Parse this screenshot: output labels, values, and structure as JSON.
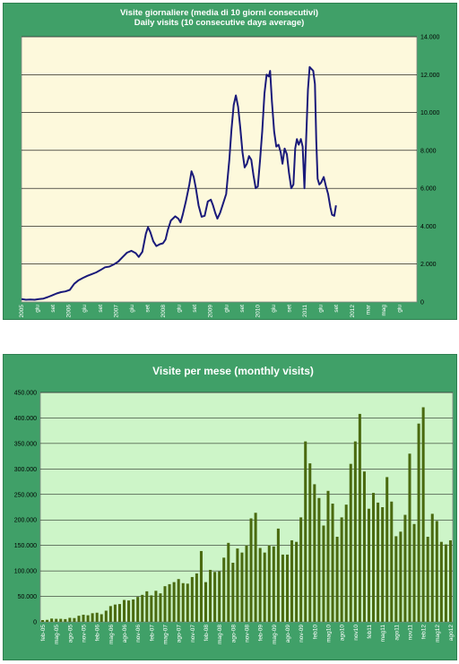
{
  "charts": [
    {
      "title_lines": [
        "Visite giornaliere (media di 10 giorni consecutivi)",
        "Daily visits (10 consecutive days average)"
      ],
      "y_tick_labels": [
        "0",
        "2.000",
        "4.000",
        "6.000",
        "8.000",
        "10.000",
        "12.000",
        "14.000"
      ],
      "x_tick_labels": [
        "2005",
        "giu",
        "set",
        "2006",
        "giu",
        "set",
        "2007",
        "giu",
        "set",
        "2008",
        "giu",
        "set",
        "2009",
        "giu",
        "set",
        "2010",
        "giu",
        "set",
        "2011",
        "giu",
        "set",
        "2012",
        "mar",
        "mag",
        "giu"
      ],
      "colors": {
        "line": "#1a1a7a",
        "plot_bg": "#fdf9dc",
        "panel_bg": "#40a068"
      }
    },
    {
      "title": "Visite per mese (monthly visits)",
      "y_tick_labels": [
        "0",
        "50.000",
        "100.000",
        "150.000",
        "200.000",
        "250.000",
        "300.000",
        "350.000",
        "400.000",
        "450.000"
      ],
      "x_tick_labels": [
        "feb-05",
        "mag-05",
        "ago-05",
        "nov-05",
        "feb-06",
        "mag-06",
        "ago-06",
        "nov-06",
        "feb-07",
        "mag-07",
        "ago-07",
        "nov-07",
        "feb-08",
        "mag-08",
        "ago-08",
        "nov-08",
        "feb-09",
        "mag-09",
        "ago-09",
        "nov-09",
        "feb10",
        "mag10",
        "ago10",
        "nov10",
        "feb11",
        "mag11",
        "ago11",
        "nov11",
        "feb12",
        "mag12",
        "ago12"
      ],
      "colors": {
        "bar": "#4a6a10",
        "plot_bg": "#cdf5c8",
        "panel_bg": "#40a068"
      }
    }
  ],
  "chart_data": [
    {
      "type": "line",
      "ylim": [
        0,
        14000
      ],
      "x_months_start": "2005-01",
      "x_months_span": 90,
      "grid": true,
      "points": [
        [
          0,
          150
        ],
        [
          1,
          120
        ],
        [
          2,
          130
        ],
        [
          3,
          120
        ],
        [
          4,
          150
        ],
        [
          5,
          180
        ],
        [
          6,
          260
        ],
        [
          7,
          350
        ],
        [
          8,
          450
        ],
        [
          9,
          520
        ],
        [
          10,
          560
        ],
        [
          11,
          640
        ],
        [
          12,
          960
        ],
        [
          13,
          1150
        ],
        [
          14,
          1270
        ],
        [
          15,
          1380
        ],
        [
          16,
          1470
        ],
        [
          17,
          1560
        ],
        [
          18,
          1690
        ],
        [
          19,
          1830
        ],
        [
          20,
          1870
        ],
        [
          21,
          1980
        ],
        [
          22,
          2130
        ],
        [
          23,
          2370
        ],
        [
          24,
          2600
        ],
        [
          25,
          2700
        ],
        [
          26,
          2580
        ],
        [
          26.7,
          2380
        ],
        [
          27.5,
          2650
        ],
        [
          28.3,
          3600
        ],
        [
          28.8,
          3950
        ],
        [
          29.3,
          3700
        ],
        [
          30,
          3200
        ],
        [
          30.7,
          2950
        ],
        [
          31.5,
          3050
        ],
        [
          32.2,
          3100
        ],
        [
          32.8,
          3300
        ],
        [
          33.3,
          3800
        ],
        [
          34,
          4300
        ],
        [
          35,
          4520
        ],
        [
          35.7,
          4400
        ],
        [
          36.2,
          4200
        ],
        [
          36.7,
          4600
        ],
        [
          37.4,
          5300
        ],
        [
          38.2,
          6200
        ],
        [
          38.7,
          6900
        ],
        [
          39.2,
          6600
        ],
        [
          39.7,
          6000
        ],
        [
          40.3,
          5100
        ],
        [
          41,
          4500
        ],
        [
          41.7,
          4550
        ],
        [
          42.4,
          5300
        ],
        [
          43.1,
          5400
        ],
        [
          43.6,
          5100
        ],
        [
          44.1,
          4700
        ],
        [
          44.6,
          4400
        ],
        [
          45.2,
          4700
        ],
        [
          45.9,
          5200
        ],
        [
          46.6,
          5700
        ],
        [
          47.3,
          7500
        ],
        [
          47.8,
          9100
        ],
        [
          48.3,
          10400
        ],
        [
          48.8,
          10900
        ],
        [
          49.3,
          10300
        ],
        [
          49.8,
          9200
        ],
        [
          50.3,
          7900
        ],
        [
          50.8,
          7100
        ],
        [
          51.3,
          7300
        ],
        [
          51.8,
          7700
        ],
        [
          52.3,
          7500
        ],
        [
          52.8,
          6700
        ],
        [
          53.3,
          6000
        ],
        [
          53.8,
          6100
        ],
        [
          54.3,
          7500
        ],
        [
          54.8,
          9000
        ],
        [
          55.3,
          11000
        ],
        [
          55.8,
          12000
        ],
        [
          56.3,
          11900
        ],
        [
          56.6,
          12200
        ],
        [
          57,
          10600
        ],
        [
          57.5,
          9000
        ],
        [
          58,
          8200
        ],
        [
          58.5,
          8300
        ],
        [
          59,
          7900
        ],
        [
          59.4,
          7300
        ],
        [
          59.9,
          8100
        ],
        [
          60.4,
          7800
        ],
        [
          60.9,
          6800
        ],
        [
          61.4,
          6000
        ],
        [
          61.9,
          6200
        ],
        [
          62.3,
          8100
        ],
        [
          62.7,
          8600
        ],
        [
          63.1,
          8300
        ],
        [
          63.6,
          8600
        ],
        [
          64,
          8200
        ],
        [
          64.4,
          6000
        ],
        [
          64.8,
          8600
        ],
        [
          65.2,
          11200
        ],
        [
          65.6,
          12400
        ],
        [
          66,
          12300
        ],
        [
          66.4,
          12200
        ],
        [
          66.8,
          11500
        ],
        [
          67.1,
          8500
        ],
        [
          67.4,
          6500
        ],
        [
          67.8,
          6200
        ],
        [
          68.2,
          6300
        ],
        [
          68.8,
          6600
        ],
        [
          69.3,
          6100
        ],
        [
          69.8,
          5700
        ],
        [
          70.3,
          5000
        ],
        [
          70.7,
          4600
        ],
        [
          71.2,
          4550
        ],
        [
          71.6,
          5100
        ]
      ]
    },
    {
      "type": "bar",
      "ylim": [
        0,
        450000
      ],
      "grid": true,
      "values": [
        3500,
        4000,
        6500,
        6000,
        6000,
        5500,
        8000,
        7500,
        12000,
        14000,
        13000,
        17000,
        18000,
        15000,
        22000,
        31000,
        34000,
        35000,
        43000,
        42000,
        44000,
        49000,
        53000,
        60000,
        52000,
        61000,
        56000,
        70000,
        74000,
        78000,
        84000,
        76000,
        75000,
        88000,
        95000,
        139000,
        78000,
        102000,
        98000,
        99000,
        126000,
        155000,
        116000,
        144000,
        136000,
        150000,
        203000,
        214000,
        145000,
        136000,
        150000,
        148000,
        183000,
        132000,
        132000,
        160000,
        157000,
        205000,
        354000,
        311000,
        270000,
        243000,
        189000,
        257000,
        232000,
        167000,
        205000,
        230000,
        310000,
        354000,
        408000,
        295000,
        222000,
        253000,
        234000,
        225000,
        284000,
        236000,
        168000,
        177000,
        210000,
        330000,
        192000,
        389000,
        421000,
        167000,
        212000,
        198000,
        157000,
        152000,
        160000
      ]
    }
  ]
}
